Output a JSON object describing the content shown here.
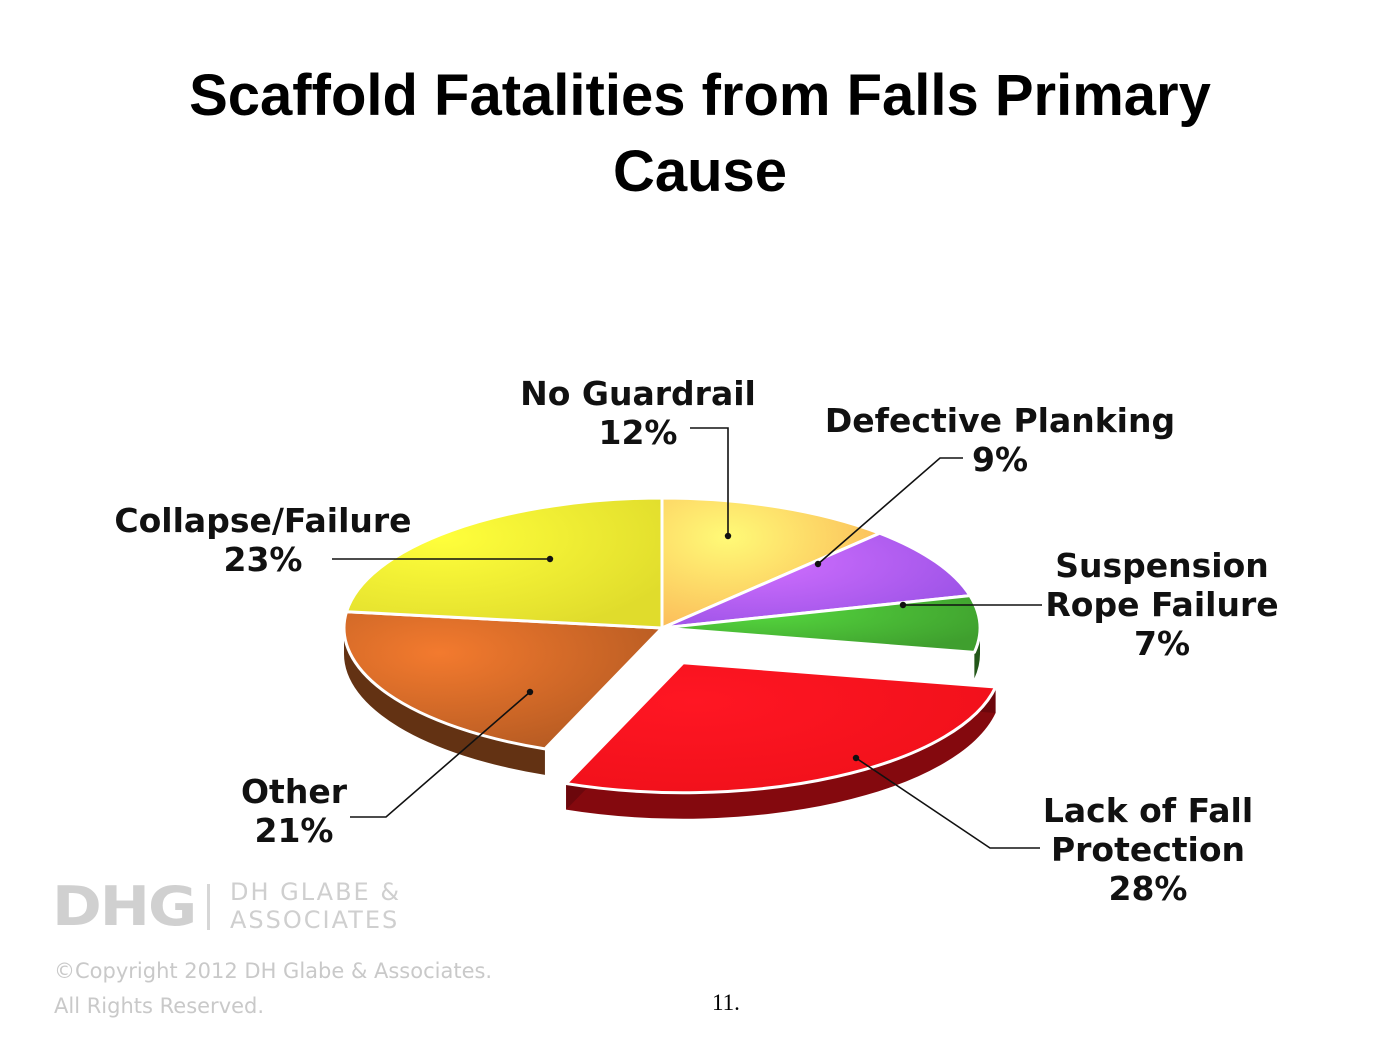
{
  "slide": {
    "title_line1": "Scaffold Fatalities from Falls Primary",
    "title_line2": "Cause",
    "page_number": "11."
  },
  "logo": {
    "mark": "DHG",
    "name_line1": "DH GLABE &",
    "name_line2": "ASSOCIATES"
  },
  "copyright": {
    "line1": "©Copyright 2012 DH Glabe & Associates.",
    "line2": "All Rights Reserved."
  },
  "chart_data": {
    "type": "pie",
    "style": "3d-exploded",
    "title": "Scaffold Fatalities from Falls Primary Cause",
    "legend": "none",
    "slices": [
      {
        "label_lines": [
          "No Guardrail",
          "12%"
        ],
        "value": 12,
        "color": "#fbb958",
        "exploded": false
      },
      {
        "label_lines": [
          "Defective Planking",
          "9%"
        ],
        "value": 9,
        "color": "#9b52e6",
        "exploded": false
      },
      {
        "label_lines": [
          "Suspension",
          "Rope Failure",
          "7%"
        ],
        "value": 7,
        "color": "#3f9f2e",
        "exploded": false
      },
      {
        "label_lines": [
          "Lack of Fall",
          "Protection",
          "28%"
        ],
        "value": 28,
        "color": "#f0101a",
        "exploded": true
      },
      {
        "label_lines": [
          "Other",
          "21%"
        ],
        "value": 21,
        "color": "#b45a22",
        "exploded": false
      },
      {
        "label_lines": [
          "Collapse/Failure",
          "23%"
        ],
        "value": 23,
        "color": "#e0dc2c",
        "exploded": false
      }
    ]
  }
}
